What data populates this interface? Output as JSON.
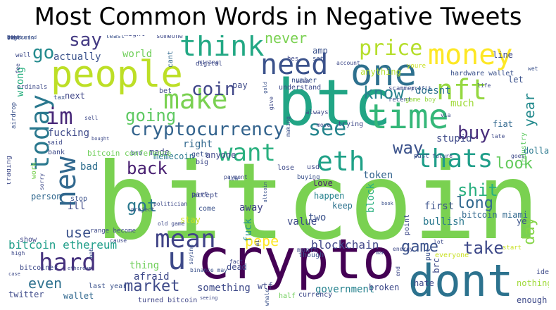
{
  "title": "Most Common Words in Negative Tweets",
  "words": [
    {
      "t": "bitcoin",
      "c": "#7ad151",
      "s": 150
    },
    {
      "t": "btc",
      "c": "#21a585",
      "s": 90
    },
    {
      "t": "crypto",
      "c": "#440154",
      "s": 78
    },
    {
      "t": "dont",
      "c": "#2c728e",
      "s": 62
    },
    {
      "t": "people",
      "c": "#bddf26",
      "s": 52
    },
    {
      "t": "one",
      "c": "#2d708e",
      "s": 52
    },
    {
      "t": "time",
      "c": "#35b779",
      "s": 48
    },
    {
      "t": "money",
      "c": "#fde725",
      "s": 40
    },
    {
      "t": "need",
      "c": "#3b528b",
      "s": 40
    },
    {
      "t": "think",
      "c": "#22a884",
      "s": 40
    },
    {
      "t": "nft",
      "c": "#95d840",
      "s": 40
    },
    {
      "t": "make",
      "c": "#7ad151",
      "s": 38
    },
    {
      "t": "today",
      "c": "#2a788e",
      "s": 36
    },
    {
      "t": "new",
      "c": "#31688e",
      "s": 40
    },
    {
      "t": "want",
      "c": "#2ab07f",
      "s": 34
    },
    {
      "t": "eth",
      "c": "#1fa187",
      "s": 38
    },
    {
      "t": "thats",
      "c": "#1f9e89",
      "s": 36
    },
    {
      "t": "mean",
      "c": "#414487",
      "s": 36
    },
    {
      "t": "hard",
      "c": "#46327e",
      "s": 34
    },
    {
      "t": "u",
      "c": "#3e4a89",
      "s": 44
    },
    {
      "t": "im",
      "c": "#482878",
      "s": 32
    },
    {
      "t": "see",
      "c": "#25858e",
      "s": 30
    },
    {
      "t": "cryptocurrency",
      "c": "#33638d",
      "s": 26
    },
    {
      "t": "price",
      "c": "#b5de2b",
      "s": 30
    },
    {
      "t": "coin",
      "c": "#404688",
      "s": 26
    },
    {
      "t": "go",
      "c": "#238a8d",
      "s": 26
    },
    {
      "t": "say",
      "c": "#443a83",
      "s": 26
    },
    {
      "t": "going",
      "c": "#5ec962",
      "s": 24
    },
    {
      "t": "know",
      "c": "#26828e",
      "s": 24
    },
    {
      "t": "buy",
      "c": "#472c7a",
      "s": 26
    },
    {
      "t": "way",
      "c": "#3b528b",
      "s": 24
    },
    {
      "t": "back",
      "c": "#481f71",
      "s": 24
    },
    {
      "t": "got",
      "c": "#2a788e",
      "s": 24
    },
    {
      "t": "look",
      "c": "#65cb5e",
      "s": 22
    },
    {
      "t": "shit",
      "c": "#29af7f",
      "s": 24
    },
    {
      "t": "long",
      "c": "#31688e",
      "s": 22
    },
    {
      "t": "take",
      "c": "#3e4989",
      "s": 24
    },
    {
      "t": "game",
      "c": "#3b528b",
      "s": 22
    },
    {
      "t": "market",
      "c": "#3e4a89",
      "s": 22
    },
    {
      "t": "even",
      "c": "#2d708e",
      "s": 20
    },
    {
      "t": "use",
      "c": "#3b528b",
      "s": 20
    },
    {
      "t": "pepe",
      "c": "#fde725",
      "s": 20
    },
    {
      "t": "day",
      "c": "#86d549",
      "s": 22
    },
    {
      "t": "year",
      "c": "#238a8d",
      "s": 20
    },
    {
      "t": "never",
      "c": "#7ad151",
      "s": 20
    },
    {
      "t": "bitcoin ethereum",
      "c": "#1f9e89",
      "s": 16
    },
    {
      "t": "blockchain",
      "c": "#404688",
      "s": 16
    },
    {
      "t": "government",
      "c": "#26828e",
      "s": 14
    },
    {
      "t": "something",
      "c": "#3e4a89",
      "s": 14
    },
    {
      "t": "wrong",
      "c": "#2ab07f",
      "s": 14
    },
    {
      "t": "actually",
      "c": "#3b528b",
      "s": 14
    },
    {
      "t": "world",
      "c": "#6ece58",
      "s": 14
    },
    {
      "t": "fucking",
      "c": "#3e4989",
      "s": 14
    },
    {
      "t": "bad",
      "c": "#2e6e8e",
      "s": 14
    },
    {
      "t": "right",
      "c": "#31688e",
      "s": 14
    },
    {
      "t": "stupid",
      "c": "#3e4a89",
      "s": 14
    },
    {
      "t": "token",
      "c": "#33638d",
      "s": 14
    },
    {
      "t": "doesnt",
      "c": "#2c728e",
      "s": 14
    },
    {
      "t": "much",
      "c": "#a0da39",
      "s": 14
    },
    {
      "t": "memecoin",
      "c": "#2a788e",
      "s": 12
    },
    {
      "t": "anyone",
      "c": "#404688",
      "s": 12
    },
    {
      "t": "away",
      "c": "#414487",
      "s": 14
    },
    {
      "t": "two",
      "c": "#3b528b",
      "s": 14
    },
    {
      "t": "fuck",
      "c": "#21918c",
      "s": 14
    },
    {
      "t": "block",
      "c": "#2ab07f",
      "s": 14
    },
    {
      "t": "value",
      "c": "#3e4a89",
      "s": 14
    },
    {
      "t": "stay",
      "c": "#c8e020",
      "s": 12
    },
    {
      "t": "thing",
      "c": "#6ece58",
      "s": 14
    },
    {
      "t": "afraid",
      "c": "#3e4989",
      "s": 14
    },
    {
      "t": "twitter",
      "c": "#3e4a89",
      "s": 12
    },
    {
      "t": "wallet",
      "c": "#31688e",
      "s": 12
    },
    {
      "t": "turned bitcoin",
      "c": "#404688",
      "s": 10
    },
    {
      "t": "wtf",
      "c": "#3e4a89",
      "s": 12
    },
    {
      "t": "bitcoin miami",
      "c": "#31688e",
      "s": 12
    },
    {
      "t": "first",
      "c": "#3b528b",
      "s": 14
    },
    {
      "t": "bullish",
      "c": "#2a788e",
      "s": 14
    },
    {
      "t": "love",
      "c": "#481b6d",
      "s": 12
    },
    {
      "t": "happen",
      "c": "#26828e",
      "s": 12
    },
    {
      "t": "keep",
      "c": "#2c728e",
      "s": 12
    },
    {
      "t": "broken",
      "c": "#3e4a89",
      "s": 12
    },
    {
      "t": "hate",
      "c": "#3e4989",
      "s": 12
    },
    {
      "t": "nothing",
      "c": "#a0da39",
      "s": 12
    },
    {
      "t": "enough",
      "c": "#3e4a89",
      "s": 12
    },
    {
      "t": "let",
      "c": "#3b528b",
      "s": 12
    },
    {
      "t": "fiat",
      "c": "#31688e",
      "s": 12
    },
    {
      "t": "industry",
      "c": "#5ec962",
      "s": 10
    },
    {
      "t": "dollar",
      "c": "#2a788e",
      "s": 12
    },
    {
      "t": "next",
      "c": "#404688",
      "s": 12
    },
    {
      "t": "made",
      "c": "#3e4a89",
      "s": 12
    },
    {
      "t": "gets",
      "c": "#3b528b",
      "s": 10
    },
    {
      "t": "part",
      "c": "#3e4989",
      "s": 10
    },
    {
      "t": "pay",
      "c": "#3e4a89",
      "s": 12
    },
    {
      "t": "amp",
      "c": "#3b528b",
      "s": 12
    },
    {
      "t": "understand",
      "c": "#3e4989",
      "s": 10
    },
    {
      "t": "anything",
      "c": "#b5de2b",
      "s": 12
    },
    {
      "t": "hardware wallet",
      "c": "#3b528b",
      "s": 10
    },
    {
      "t": "support",
      "c": "#c8e020",
      "s": 10
    },
    {
      "t": "line",
      "c": "#3e4a89",
      "s": 12
    },
    {
      "t": "might",
      "c": "#3e4989",
      "s": 10
    },
    {
      "t": "cant",
      "c": "#31688e",
      "s": 10
    },
    {
      "t": "bet",
      "c": "#3e4a89",
      "s": 10
    },
    {
      "t": "number",
      "c": "#3b528b",
      "s": 10
    },
    {
      "t": "trying",
      "c": "#3e4989",
      "s": 10
    },
    {
      "t": "scammer",
      "c": "#3e4a89",
      "s": 9
    },
    {
      "t": "recent",
      "c": "#3b528b",
      "s": 9
    },
    {
      "t": "game boy",
      "c": "#95d840",
      "s": 9
    },
    {
      "t": "said",
      "c": "#3e4989",
      "s": 9
    },
    {
      "t": "bank",
      "c": "#3e4a89",
      "s": 10
    },
    {
      "t": "work",
      "c": "#7ad151",
      "s": 10
    },
    {
      "t": "person",
      "c": "#31688e",
      "s": 12
    },
    {
      "t": "trading",
      "c": "#3e4a89",
      "s": 10
    },
    {
      "t": "bitcoin conference",
      "c": "#6ece58",
      "s": 11
    },
    {
      "t": "ill",
      "c": "#3e4989",
      "s": 14
    },
    {
      "t": "show",
      "c": "#404688",
      "s": 10
    },
    {
      "t": "bitcoiner",
      "c": "#3e4a89",
      "s": 10
    },
    {
      "t": "stop",
      "c": "#3b528b",
      "s": 10
    },
    {
      "t": "big",
      "c": "#3e4989",
      "s": 10
    },
    {
      "t": "lose",
      "c": "#3e4a89",
      "s": 10
    },
    {
      "t": "buying",
      "c": "#3b528b",
      "s": 9
    },
    {
      "t": "payment",
      "c": "#3e4989",
      "s": 8
    },
    {
      "t": "accept",
      "c": "#3e4a89",
      "s": 10
    },
    {
      "t": "come",
      "c": "#3b528b",
      "s": 10
    },
    {
      "t": "old game",
      "c": "#3e4989",
      "s": 8
    },
    {
      "t": "dead",
      "c": "#3e4a89",
      "s": 12
    },
    {
      "t": "though",
      "c": "#3b528b",
      "s": 10
    },
    {
      "t": "month",
      "c": "#3e4989",
      "s": 10
    },
    {
      "t": "brc",
      "c": "#3e4a89",
      "s": 12
    },
    {
      "t": "put",
      "c": "#3b528b",
      "s": 10
    },
    {
      "t": "start",
      "c": "#c8e020",
      "s": 9
    },
    {
      "t": "idea",
      "c": "#3e4a89",
      "s": 10
    },
    {
      "t": "last year",
      "c": "#3b528b",
      "s": 10
    },
    {
      "t": "half",
      "c": "#6ece58",
      "s": 10
    },
    {
      "t": "currency",
      "c": "#3e4989",
      "s": 10
    },
    {
      "t": "well",
      "c": "#3e4a89",
      "s": 9
    },
    {
      "t": "least",
      "c": "#3b528b",
      "s": 9
    },
    {
      "t": "someone",
      "c": "#3e4989",
      "s": 9
    },
    {
      "t": "ordinals",
      "c": "#3e4a89",
      "s": 9
    },
    {
      "t": "airdrop",
      "c": "#3b528b",
      "s": 9
    },
    {
      "t": "fee",
      "c": "#3e4989",
      "s": 8
    },
    {
      "t": "case",
      "c": "#3e4a89",
      "s": 7
    },
    {
      "t": "bro",
      "c": "#3b528b",
      "s": 9
    },
    {
      "t": "sell",
      "c": "#3e4989",
      "s": 8
    },
    {
      "t": "bought",
      "c": "#3e4a89",
      "s": 7
    },
    {
      "t": "tax",
      "c": "#3b528b",
      "s": 9
    },
    {
      "t": "hero",
      "c": "#3e4989",
      "s": 7
    },
    {
      "t": "digital",
      "c": "#3e4a89",
      "s": 9
    },
    {
      "t": "sat",
      "c": "#3b528b",
      "s": 9
    },
    {
      "t": "account",
      "c": "#3e4989",
      "s": 8
    },
    {
      "t": "scam",
      "c": "#3e4a89",
      "s": 8
    },
    {
      "t": "youre",
      "c": "#c8e020",
      "s": 9
    },
    {
      "t": "profit",
      "c": "#3b528b",
      "s": 8
    },
    {
      "t": "via",
      "c": "#3e4989",
      "s": 8
    },
    {
      "t": "life",
      "c": "#3e4a89",
      "s": 8
    },
    {
      "t": "wet",
      "c": "#3b528b",
      "s": 8
    },
    {
      "t": "goes",
      "c": "#3e4989",
      "s": 8
    },
    {
      "t": "late",
      "c": "#3e4a89",
      "s": 8
    },
    {
      "t": "past",
      "c": "#3b528b",
      "s": 9
    },
    {
      "t": "future",
      "c": "#3e4989",
      "s": 8
    },
    {
      "t": "usd",
      "c": "#3e4a89",
      "s": 10
    },
    {
      "t": "low",
      "c": "#3b528b",
      "s": 8
    },
    {
      "t": "move",
      "c": "#3e4989",
      "s": 8
    },
    {
      "t": "mining",
      "c": "#3e4a89",
      "s": 8
    },
    {
      "t": "making",
      "c": "#3b528b",
      "s": 8
    },
    {
      "t": "always",
      "c": "#3e4989",
      "s": 9
    },
    {
      "t": "point",
      "c": "#3e4a89",
      "s": 10
    },
    {
      "t": "ye",
      "c": "#3b528b",
      "s": 12
    },
    {
      "t": "everyone",
      "c": "#c8e020",
      "s": 10
    },
    {
      "t": "end",
      "c": "#3e4989",
      "s": 8
    },
    {
      "t": "lot",
      "c": "#3e4a89",
      "s": 8
    },
    {
      "t": "book",
      "c": "#3b528b",
      "s": 7
    },
    {
      "t": "energy",
      "c": "#3e4989",
      "s": 8
    },
    {
      "t": "ethereum",
      "c": "#3e4a89",
      "s": 7
    },
    {
      "t": "binance may",
      "c": "#3b528b",
      "s": 8
    },
    {
      "t": "high",
      "c": "#3e4989",
      "s": 8
    },
    {
      "t": "fact",
      "c": "#3e4a89",
      "s": 8
    },
    {
      "t": "saying",
      "c": "#3b528b",
      "s": 8
    },
    {
      "t": "ai",
      "c": "#3e4989",
      "s": 8
    },
    {
      "t": "seeing",
      "c": "#3e4a89",
      "s": 7
    },
    {
      "t": "whale",
      "c": "#3b528b",
      "s": 8
    },
    {
      "t": "cause",
      "c": "#3e4989",
      "s": 8
    },
    {
      "t": "range become",
      "c": "#3e4a89",
      "s": 9
    },
    {
      "t": "bnb",
      "c": "#3b528b",
      "s": 8
    },
    {
      "t": "project",
      "c": "#3e4989",
      "s": 8
    },
    {
      "t": "politician",
      "c": "#3e4a89",
      "s": 8
    },
    {
      "t": "altcoin",
      "c": "#3b528b",
      "s": 7
    },
    {
      "t": "man",
      "c": "#3e4989",
      "s": 7
    },
    {
      "t": "give",
      "c": "#3e4a89",
      "s": 8
    },
    {
      "t": "gold",
      "c": "#3b528b",
      "s": 7
    },
    {
      "t": "hes",
      "c": "#3e4989",
      "s": 9
    },
    {
      "t": "sorry",
      "c": "#3e4a89",
      "s": 8
    },
    {
      "t": "bull",
      "c": "#3b528b",
      "s": 7
    },
    {
      "t": "offer",
      "c": "#3e4989",
      "s": 7
    },
    {
      "t": "list",
      "c": "#3e4a89",
      "s": 8
    },
    {
      "t": "dogecoin",
      "c": "#3b528b",
      "s": 8
    },
    {
      "t": "ive",
      "c": "#3e4989",
      "s": 7
    },
    {
      "t": "guy",
      "c": "#3e4a89",
      "s": 7
    },
    {
      "t": "buy turned",
      "c": "#3b528b",
      "s": 7
    }
  ]
}
